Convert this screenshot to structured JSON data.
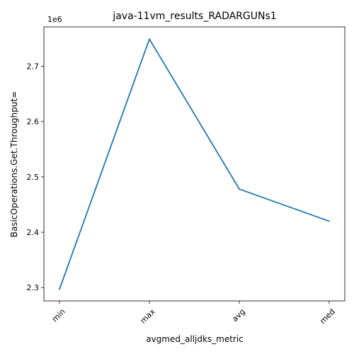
{
  "chart_data": {
    "type": "line",
    "title": "java-11vm_results_RADARGUNs1",
    "xlabel": "avgmed_alljdks_metric",
    "ylabel": "BasicOperations.Get.Throughput=",
    "offset_label": "1e6",
    "categories": [
      "min",
      "max",
      "avg",
      "med"
    ],
    "series": [
      {
        "name": "BasicOperations.Get.Throughput=",
        "values": [
          2297000,
          2749000,
          2478000,
          2420000
        ]
      }
    ],
    "ylim": [
      2276000,
      2771000
    ],
    "yticks": [
      2300000,
      2400000,
      2500000,
      2600000,
      2700000
    ],
    "ytick_labels": [
      "2.3",
      "2.4",
      "2.5",
      "2.6",
      "2.7"
    ],
    "grid": false,
    "colors": {
      "line": "#1f77b4",
      "axis": "#000000",
      "background": "#ffffff"
    }
  }
}
